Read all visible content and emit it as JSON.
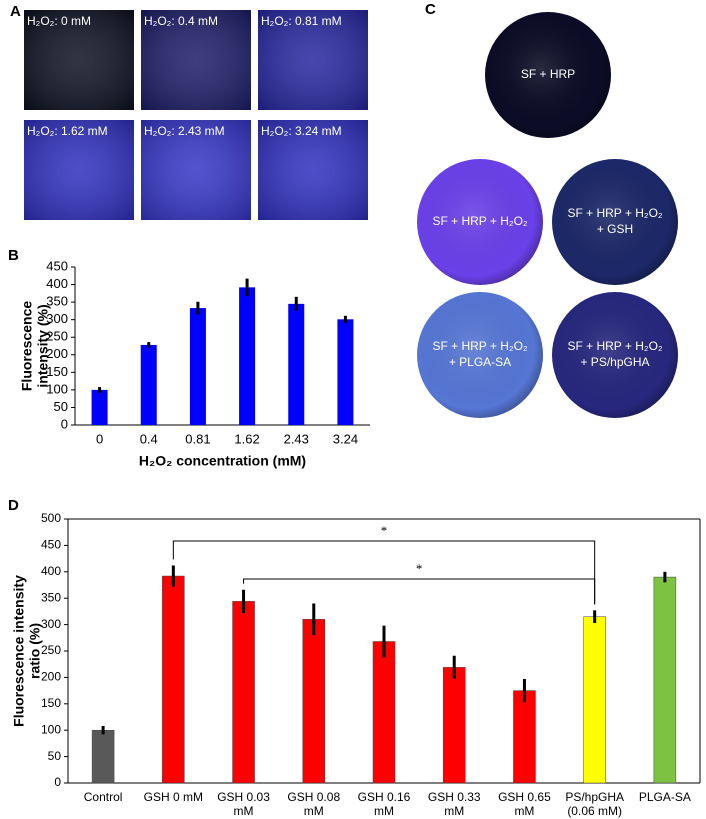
{
  "panel_a": {
    "letter": "A",
    "images": [
      "H₂O₂: 0 mM",
      "H₂O₂: 0.4 mM",
      "H₂O₂: 0.81 mM",
      "H₂O₂: 1.62 mM",
      "H₂O₂: 2.43 mM",
      "H₂O₂: 3.24 mM"
    ]
  },
  "panel_c": {
    "letter": "C",
    "circles": [
      [
        "SF + HRP"
      ],
      [
        "SF + HRP + H₂O₂"
      ],
      [
        "SF + HRP + H₂O₂",
        "+ GSH"
      ],
      [
        "SF + HRP + H₂O₂",
        "+ PLGA-SA"
      ],
      [
        "SF + HRP + H₂O₂",
        "+ PS/hpGHA"
      ]
    ]
  },
  "chart_data": [
    {
      "type": "bar",
      "panel": "B",
      "x_label": "H₂O₂ concentration (mM)",
      "y_label": [
        "Fluorescence",
        "intensity (%)"
      ],
      "categories": [
        [
          "0"
        ],
        [
          "0.4"
        ],
        [
          "0.81"
        ],
        [
          "1.62"
        ],
        [
          "2.43"
        ],
        [
          "3.24"
        ]
      ],
      "values": [
        100,
        228,
        333,
        392,
        345,
        301
      ],
      "errors": [
        8,
        8,
        18,
        25,
        20,
        10
      ],
      "colors": [
        "#0000ff",
        "#0000ff",
        "#0000ff",
        "#0000ff",
        "#0000ff",
        "#0000ff"
      ],
      "ylim": [
        0,
        450
      ],
      "yticks": [
        0,
        50,
        100,
        150,
        200,
        250,
        300,
        350,
        400,
        450
      ]
    },
    {
      "type": "bar",
      "panel": "D",
      "y_label": [
        "Fluorescence intensity",
        "ratio (%)"
      ],
      "categories": [
        [
          "Control"
        ],
        [
          "GSH 0 mM"
        ],
        [
          "GSH 0.03",
          "mM"
        ],
        [
          "GSH 0.08",
          "mM"
        ],
        [
          "GSH 0.16",
          "mM"
        ],
        [
          "GSH 0.33",
          "mM"
        ],
        [
          "GSH 0.65",
          "mM"
        ],
        [
          "PS/hpGHA",
          "(0.06 mM)"
        ],
        [
          "PLGA-SA"
        ]
      ],
      "values": [
        100,
        392,
        344,
        310,
        268,
        219,
        175,
        315,
        390
      ],
      "errors": [
        8,
        20,
        22,
        30,
        30,
        22,
        22,
        12,
        10
      ],
      "colors": [
        "#595959",
        "#ff0000",
        "#ff0000",
        "#ff0000",
        "#ff0000",
        "#ff0000",
        "#ff0000",
        "#ffff00",
        "#7dc242"
      ],
      "ylim": [
        0,
        500
      ],
      "yticks": [
        0,
        50,
        100,
        150,
        200,
        250,
        300,
        350,
        400,
        450,
        500
      ],
      "annotations": [
        {
          "from": 1,
          "to": 7,
          "label": "*"
        },
        {
          "from": 2,
          "to": 7,
          "label": "*"
        }
      ]
    }
  ]
}
